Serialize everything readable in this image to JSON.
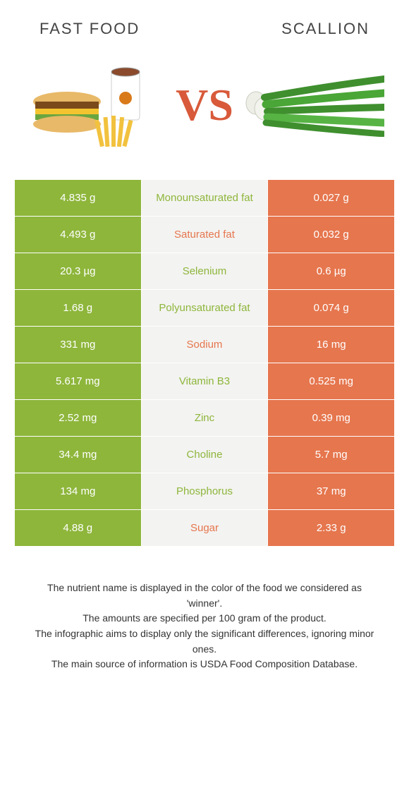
{
  "colors": {
    "left": "#8eb63b",
    "right": "#e6764e",
    "mid_bg": "#f3f3f1",
    "vs": "#d85a3a"
  },
  "header": {
    "left_title": "Fast food",
    "right_title": "Scallion"
  },
  "vs_label": "VS",
  "rows": [
    {
      "left": "4.835 g",
      "mid": "Monounsaturated fat",
      "right": "0.027 g",
      "winner": "left"
    },
    {
      "left": "4.493 g",
      "mid": "Saturated fat",
      "right": "0.032 g",
      "winner": "right"
    },
    {
      "left": "20.3 µg",
      "mid": "Selenium",
      "right": "0.6 µg",
      "winner": "left"
    },
    {
      "left": "1.68 g",
      "mid": "Polyunsaturated fat",
      "right": "0.074 g",
      "winner": "left"
    },
    {
      "left": "331 mg",
      "mid": "Sodium",
      "right": "16 mg",
      "winner": "right"
    },
    {
      "left": "5.617 mg",
      "mid": "Vitamin B3",
      "right": "0.525 mg",
      "winner": "left"
    },
    {
      "left": "2.52 mg",
      "mid": "Zinc",
      "right": "0.39 mg",
      "winner": "left"
    },
    {
      "left": "34.4 mg",
      "mid": "Choline",
      "right": "5.7 mg",
      "winner": "left"
    },
    {
      "left": "134 mg",
      "mid": "Phosphorus",
      "right": "37 mg",
      "winner": "left"
    },
    {
      "left": "4.88 g",
      "mid": "Sugar",
      "right": "2.33 g",
      "winner": "right"
    }
  ],
  "footer": {
    "line1": "The nutrient name is displayed in the color of the food we considered as 'winner'.",
    "line2": "The amounts are specified per 100 gram of the product.",
    "line3": "The infographic aims to display only the significant differences, ignoring minor ones.",
    "line4": "The main source of information is USDA Food Composition Database."
  }
}
